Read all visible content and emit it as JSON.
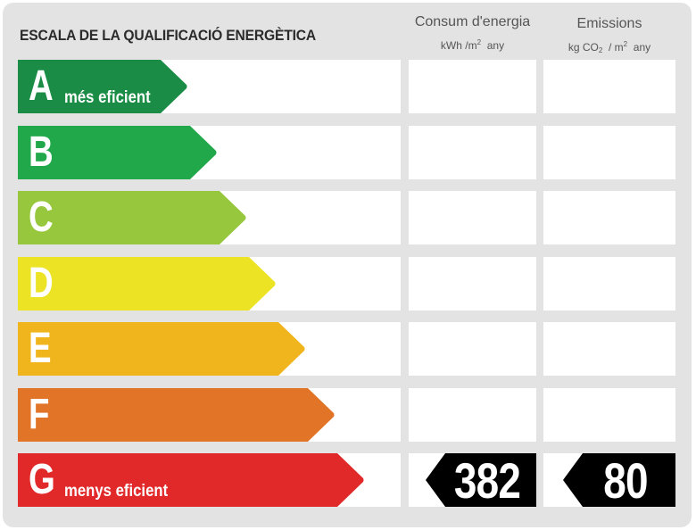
{
  "title": "ESCALA DE LA QUALIFICACIÓ ENERGÈTICA",
  "columns": {
    "consum": {
      "label": "Consum d'energia",
      "unit_pre": "kWh /m",
      "unit_sup": "2",
      "unit_post": "any"
    },
    "emissions": {
      "label": "Emissions",
      "unit_pre": "kg CO",
      "unit_sub": "2",
      "unit_mid": "/ m",
      "unit_sup": "2",
      "unit_post": "any"
    }
  },
  "ratings": [
    {
      "letter": "A",
      "sublabel": "més eficient",
      "color": "#1a8c45"
    },
    {
      "letter": "B",
      "sublabel": "",
      "color": "#21a84a"
    },
    {
      "letter": "C",
      "sublabel": "",
      "color": "#96c73d"
    },
    {
      "letter": "D",
      "sublabel": "",
      "color": "#ebe324"
    },
    {
      "letter": "E",
      "sublabel": "",
      "color": "#f0b51c"
    },
    {
      "letter": "F",
      "sublabel": "",
      "color": "#e27428"
    },
    {
      "letter": "G",
      "sublabel": "menys eficient",
      "color": "#e1292a"
    }
  ],
  "result": {
    "rating": "G",
    "consum_value": "382",
    "emissions_value": "80"
  },
  "colors": {
    "background": "#e3e3e3",
    "cell": "#ffffff",
    "badge": "#000000"
  }
}
